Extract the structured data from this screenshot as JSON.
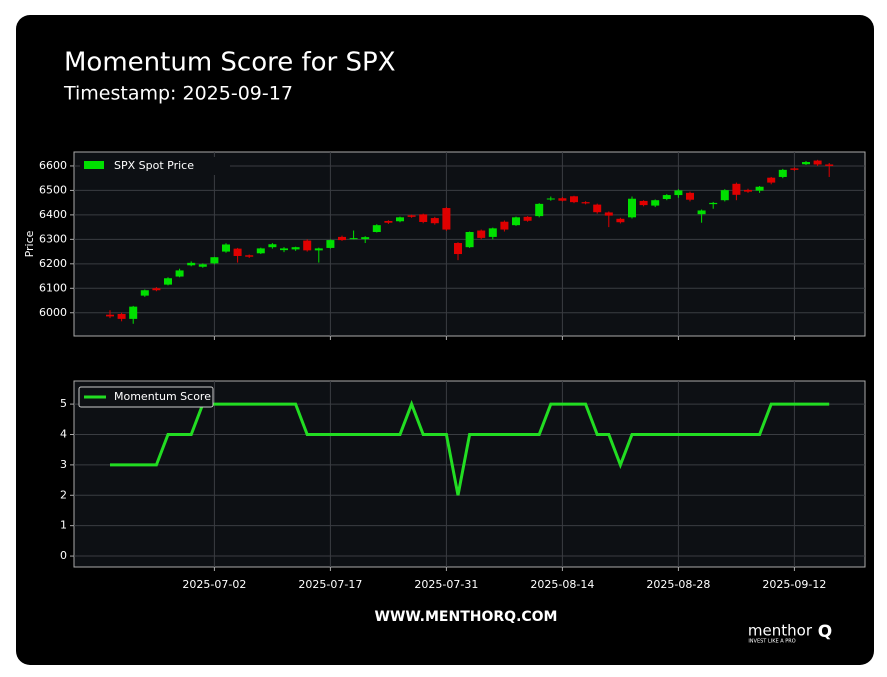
{
  "title": "Momentum Score for SPX",
  "subtitle": "Timestamp: 2025-09-17",
  "footer": "WWW.MENTHORQ.COM",
  "logo": "menthor",
  "logo_mark": "Q",
  "logo_tagline": "INVEST LIKE A PRO",
  "chart_data": [
    {
      "type": "candlestick",
      "y_label": "Price",
      "ylim": [
        5905,
        6657
      ],
      "yticks": [
        6000,
        6100,
        6200,
        6300,
        6400,
        6500,
        6600
      ],
      "grid": true,
      "legend": "upper left",
      "series": [
        {
          "name": "SPX Spot Price",
          "color": "#00e000",
          "down_color": "#e00000",
          "open": [
            5992,
            5995,
            5975,
            6070,
            6100,
            6115,
            6148,
            6194,
            6188,
            6202,
            6250,
            6262,
            6235,
            6243,
            6268,
            6256,
            6259,
            6295,
            6255,
            6265,
            6310,
            6302,
            6301,
            6330,
            6375,
            6374,
            6398,
            6402,
            6387,
            6428,
            6285,
            6268,
            6336,
            6310,
            6372,
            6358,
            6392,
            6395,
            6463,
            6468,
            6476,
            6452,
            6442,
            6410,
            6384,
            6390,
            6457,
            6438,
            6465,
            6481,
            6490,
            6403,
            6444,
            6460,
            6527,
            6502,
            6499,
            6552,
            6555,
            6590,
            6607,
            6622,
            6606
          ],
          "high": [
            6010,
            6000,
            6028,
            6095,
            6105,
            6145,
            6180,
            6210,
            6202,
            6228,
            6284,
            6265,
            6238,
            6266,
            6285,
            6268,
            6270,
            6300,
            6266,
            6300,
            6315,
            6336,
            6313,
            6362,
            6378,
            6393,
            6401,
            6405,
            6392,
            6432,
            6288,
            6332,
            6340,
            6348,
            6377,
            6393,
            6395,
            6448,
            6475,
            6473,
            6478,
            6456,
            6446,
            6414,
            6388,
            6475,
            6460,
            6463,
            6485,
            6505,
            6495,
            6422,
            6453,
            6505,
            6532,
            6507,
            6518,
            6555,
            6588,
            6594,
            6620,
            6625,
            6612
          ],
          "low": [
            5978,
            5965,
            5955,
            6065,
            6088,
            6112,
            6145,
            6190,
            6184,
            6198,
            6245,
            6205,
            6224,
            6240,
            6262,
            6248,
            6253,
            6250,
            6205,
            6262,
            6294,
            6300,
            6285,
            6328,
            6363,
            6370,
            6388,
            6366,
            6360,
            6335,
            6215,
            6265,
            6300,
            6300,
            6332,
            6355,
            6372,
            6390,
            6458,
            6455,
            6448,
            6443,
            6405,
            6350,
            6365,
            6385,
            6435,
            6432,
            6460,
            6470,
            6455,
            6368,
            6425,
            6455,
            6460,
            6490,
            6490,
            6525,
            6550,
            6580,
            6604,
            6600,
            6555
          ],
          "close": [
            5985,
            5975,
            6025,
            6092,
            6092,
            6141,
            6173,
            6204,
            6198,
            6227,
            6279,
            6232,
            6229,
            6263,
            6280,
            6263,
            6268,
            6255,
            6263,
            6297,
            6297,
            6305,
            6309,
            6358,
            6368,
            6390,
            6392,
            6371,
            6366,
            6340,
            6240,
            6330,
            6306,
            6345,
            6340,
            6390,
            6376,
            6445,
            6467,
            6458,
            6452,
            6447,
            6411,
            6397,
            6370,
            6466,
            6440,
            6460,
            6481,
            6500,
            6462,
            6418,
            6449,
            6501,
            6482,
            6495,
            6515,
            6532,
            6584,
            6584,
            6616,
            6606,
            6600
          ]
        }
      ]
    },
    {
      "type": "line",
      "ylim": [
        -0.36,
        5.76
      ],
      "yticks": [
        0,
        1,
        2,
        3,
        4,
        5
      ],
      "grid": true,
      "legend": "upper left",
      "categories": [
        null,
        null,
        null,
        null,
        null,
        null,
        null,
        null,
        null,
        "2025-07-02",
        null,
        null,
        null,
        null,
        null,
        null,
        null,
        null,
        null,
        "2025-07-17",
        null,
        null,
        null,
        null,
        null,
        null,
        null,
        null,
        null,
        "2025-07-31",
        null,
        null,
        null,
        null,
        null,
        null,
        null,
        null,
        null,
        "2025-08-14",
        null,
        null,
        null,
        null,
        null,
        null,
        null,
        null,
        null,
        "2025-08-28",
        null,
        null,
        null,
        null,
        null,
        null,
        null,
        null,
        null,
        "2025-09-12",
        null,
        null,
        null
      ],
      "series": [
        {
          "name": "Momentum Score",
          "color": "#22dd22",
          "values": [
            3,
            3,
            3,
            3,
            3,
            4,
            4,
            4,
            5,
            5,
            5,
            5,
            5,
            5,
            5,
            5,
            5,
            4,
            4,
            4,
            4,
            4,
            4,
            4,
            4,
            4,
            5,
            4,
            4,
            4,
            2,
            4,
            4,
            4,
            4,
            4,
            4,
            4,
            5,
            5,
            5,
            5,
            4,
            4,
            3,
            4,
            4,
            4,
            4,
            4,
            4,
            4,
            4,
            4,
            4,
            4,
            4,
            5,
            5,
            5,
            5,
            5,
            5
          ]
        }
      ]
    }
  ]
}
